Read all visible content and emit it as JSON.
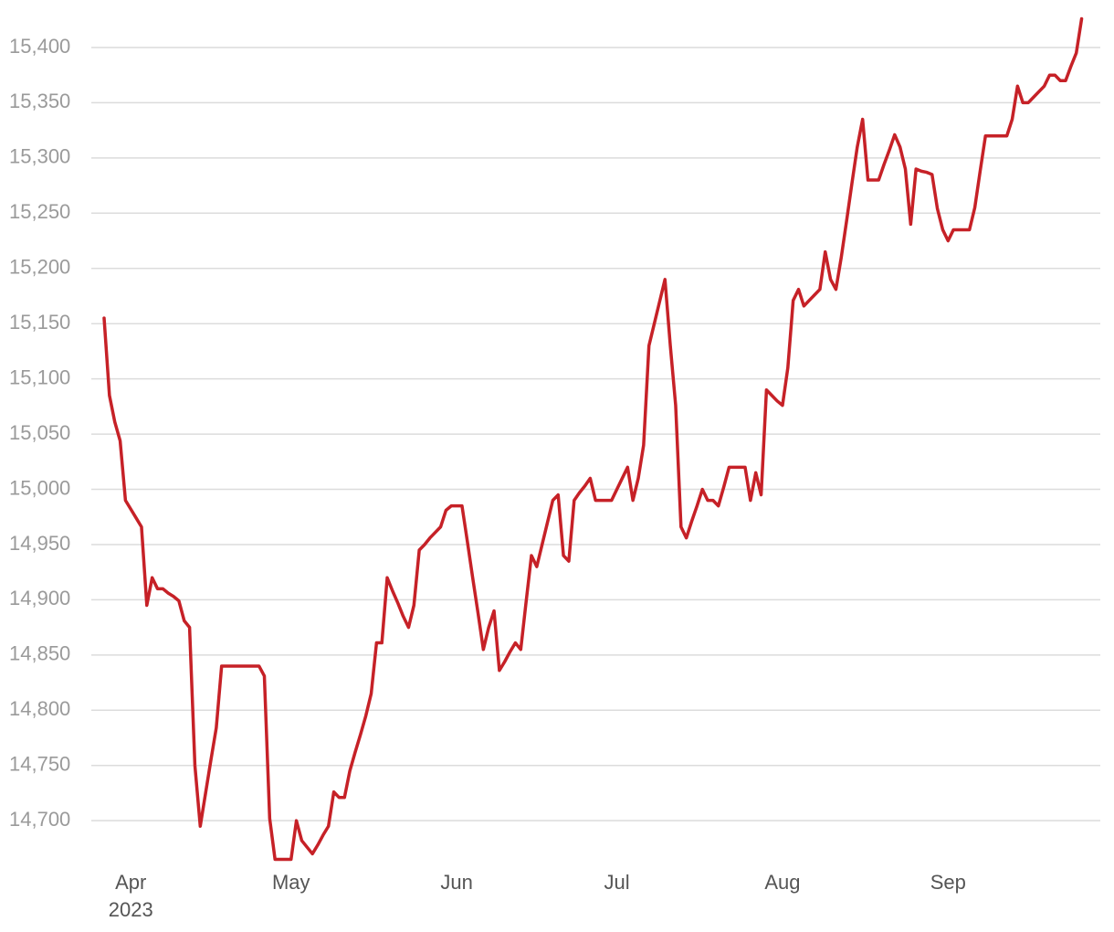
{
  "chart_data": {
    "type": "line",
    "categories": [
      null,
      null,
      null,
      null,
      null,
      "Apr",
      null,
      null,
      null,
      null,
      null,
      null,
      null,
      null,
      null,
      null,
      null,
      null,
      null,
      null,
      null,
      null,
      null,
      null,
      null,
      null,
      null,
      null,
      null,
      null,
      null,
      null,
      null,
      null,
      null,
      "May",
      null,
      null,
      null,
      null,
      null,
      null,
      null,
      null,
      null,
      null,
      null,
      null,
      null,
      null,
      null,
      null,
      null,
      null,
      null,
      null,
      null,
      null,
      null,
      null,
      null,
      null,
      null,
      null,
      null,
      null,
      "Jun",
      null,
      null,
      null,
      null,
      null,
      null,
      null,
      null,
      null,
      null,
      null,
      null,
      null,
      null,
      null,
      null,
      null,
      null,
      null,
      null,
      null,
      null,
      null,
      null,
      null,
      null,
      null,
      null,
      null,
      "Jul",
      null,
      null,
      null,
      null,
      null,
      null,
      null,
      null,
      null,
      null,
      null,
      null,
      null,
      null,
      null,
      null,
      null,
      null,
      null,
      null,
      null,
      null,
      null,
      null,
      null,
      null,
      null,
      null,
      null,
      null,
      "Aug",
      null,
      null,
      null,
      null,
      null,
      null,
      null,
      null,
      null,
      null,
      null,
      null,
      null,
      null,
      null,
      null,
      null,
      null,
      null,
      null,
      null,
      null,
      null,
      null,
      null,
      null,
      null,
      null,
      null,
      null,
      "Sep",
      null,
      null,
      null,
      null,
      null,
      null,
      null,
      null,
      null,
      null,
      null,
      null,
      null,
      null,
      null,
      null,
      null,
      null,
      null,
      null,
      null,
      null,
      null,
      null,
      null
    ],
    "year_label": "2023",
    "series": [
      {
        "color": "#c62127",
        "values": [
          15155,
          15085,
          15061,
          15044,
          14990,
          14982,
          14974,
          14966,
          14895,
          14920,
          14910,
          14910,
          14906,
          14903,
          14899,
          14881,
          14875,
          14750,
          14695,
          14725,
          14755,
          14784,
          14840,
          14840,
          14840,
          14840,
          14840,
          14840,
          14840,
          14840,
          14831,
          14702,
          14665,
          14665,
          14665,
          14665,
          14700,
          14682,
          14676,
          14670,
          14678,
          14687,
          14695,
          14726,
          14721,
          14721,
          14745,
          14762,
          14778,
          14795,
          14815,
          14861,
          14861,
          14920,
          14908,
          14897,
          14885,
          14875,
          14895,
          14945,
          14950,
          14956,
          14961,
          14966,
          14981,
          14985,
          14985,
          14985,
          14953,
          14920,
          14888,
          14855,
          14875,
          14890,
          14836,
          14844,
          14853,
          14861,
          14855,
          14898,
          14940,
          14930,
          14950,
          14970,
          14990,
          14995,
          14940,
          14935,
          14990,
          14997,
          15003,
          15010,
          14990,
          14990,
          14990,
          14990,
          15000,
          15010,
          15020,
          14990,
          15010,
          15040,
          15130,
          15150,
          15170,
          15190,
          15130,
          15076,
          14966,
          14956,
          14971,
          14985,
          15000,
          14990,
          14990,
          14985,
          15002,
          15020,
          15020,
          15020,
          15020,
          14990,
          15015,
          14995,
          15090,
          15085,
          15080,
          15076,
          15110,
          15171,
          15181,
          15166,
          15171,
          15176,
          15181,
          15215,
          15190,
          15181,
          15210,
          15243,
          15277,
          15310,
          15335,
          15280,
          15280,
          15280,
          15294,
          15307,
          15321,
          15310,
          15290,
          15240,
          15290,
          15288,
          15287,
          15285,
          15254,
          15235,
          15225,
          15235,
          15235,
          15235,
          15235,
          15255,
          15288,
          15320,
          15320,
          15320,
          15320,
          15320,
          15335,
          15365,
          15350,
          15350,
          15355,
          15360,
          15365,
          15375,
          15375,
          15370,
          15370,
          15383,
          15395,
          15426
        ]
      }
    ],
    "ylim": [
      14653,
      15443
    ],
    "yticks": [
      {
        "value": 14700,
        "label": "14,700"
      },
      {
        "value": 14750,
        "label": "14,750"
      },
      {
        "value": 14800,
        "label": "14,800"
      },
      {
        "value": 14850,
        "label": "14,850"
      },
      {
        "value": 14900,
        "label": "14,900"
      },
      {
        "value": 14950,
        "label": "14,950"
      },
      {
        "value": 15000,
        "label": "15,000"
      },
      {
        "value": 15050,
        "label": "15,050"
      },
      {
        "value": 15100,
        "label": "15,100"
      },
      {
        "value": 15150,
        "label": "15,150"
      },
      {
        "value": 15200,
        "label": "15,200"
      },
      {
        "value": 15250,
        "label": "15,250"
      },
      {
        "value": 15300,
        "label": "15,300"
      },
      {
        "value": 15350,
        "label": "15,350"
      },
      {
        "value": 15400,
        "label": "15,400"
      }
    ],
    "grid": true
  }
}
